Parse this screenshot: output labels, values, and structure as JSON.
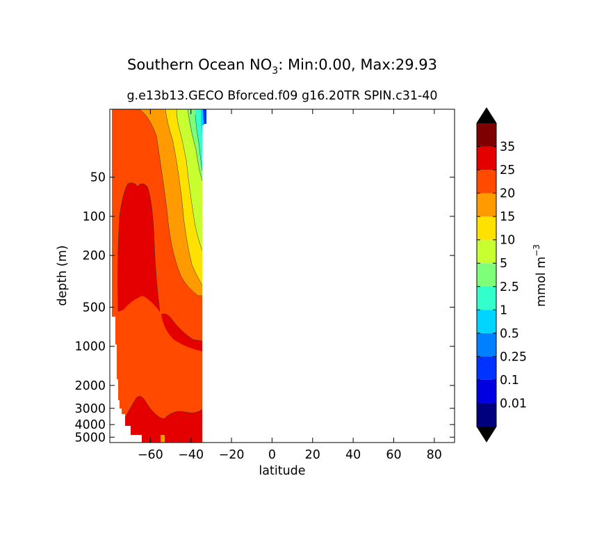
{
  "chart_data": {
    "type": "contour",
    "title_main": "Southern Ocean NO",
    "title_subscript": "3",
    "title_rest": ": Min:0.00, Max:29.93",
    "subtitle": "g.e13b13.GECO Bforced.f09 g16.20TR SPIN.c31-40",
    "subtitle_overlap": "31-40",
    "xlabel": "latitude",
    "ylabel": "depth (m)",
    "xlim": [
      -80,
      90
    ],
    "ylim_depth": [
      15,
      5500
    ],
    "xticks": [
      "−60",
      "−40",
      "−20",
      "0",
      "20",
      "40",
      "60",
      "80"
    ],
    "yticks": [
      "50",
      "100",
      "200",
      "500",
      "1000",
      "2000",
      "3000",
      "4000",
      "5000"
    ],
    "colorbar_label": "mmol m",
    "colorbar_label_exp": "−3",
    "levels": [
      "0.01",
      "0.1",
      "0.25",
      "0.5",
      "1",
      "2.5",
      "5",
      "10",
      "15",
      "20",
      "25",
      "35"
    ],
    "level_colors": [
      "#00007f",
      "#0000e0",
      "#0033ff",
      "#0080ff",
      "#00d4ff",
      "#33ffcc",
      "#7dff7a",
      "#c7ff30",
      "#ffe100",
      "#ff9a00",
      "#ff4a00",
      "#e50000",
      "#7f0000"
    ],
    "extend_colors": {
      "min": "#000000",
      "max": "#000000"
    },
    "data_extent_lat": [
      -80,
      -33
    ],
    "value_range": {
      "min": 0.0,
      "max": 29.93
    }
  }
}
